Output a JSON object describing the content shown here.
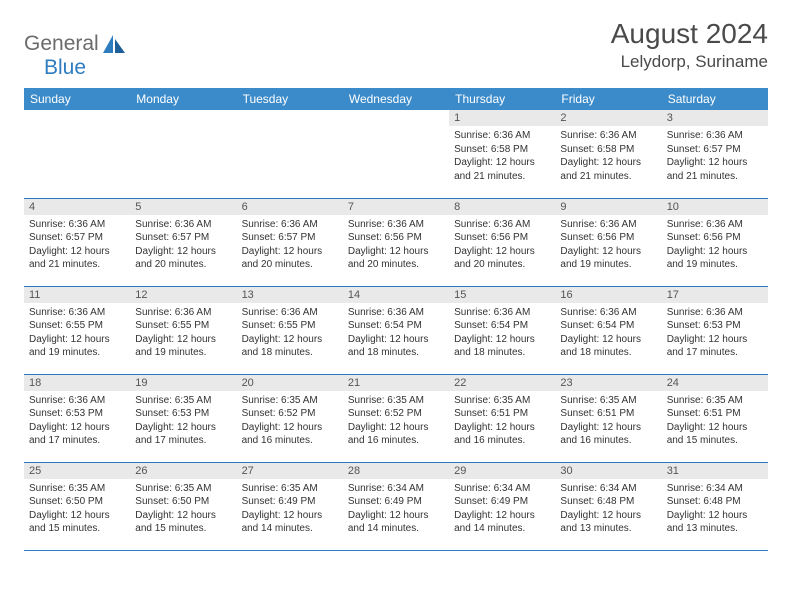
{
  "brand": {
    "part1": "General",
    "part2": "Blue"
  },
  "title": "August 2024",
  "location": "Lelydorp, Suriname",
  "colors": {
    "header_bg": "#3b8bca",
    "header_text": "#ffffff",
    "daynum_bg": "#e9e9e9",
    "rule": "#2e7cc0",
    "text": "#333333",
    "brand_gray": "#6b6b6b",
    "brand_blue": "#2e7cc0"
  },
  "weekdays": [
    "Sunday",
    "Monday",
    "Tuesday",
    "Wednesday",
    "Thursday",
    "Friday",
    "Saturday"
  ],
  "weeks": [
    [
      null,
      null,
      null,
      null,
      {
        "n": "1",
        "sr": "6:36 AM",
        "ss": "6:58 PM",
        "dl": "12 hours and 21 minutes."
      },
      {
        "n": "2",
        "sr": "6:36 AM",
        "ss": "6:58 PM",
        "dl": "12 hours and 21 minutes."
      },
      {
        "n": "3",
        "sr": "6:36 AM",
        "ss": "6:57 PM",
        "dl": "12 hours and 21 minutes."
      }
    ],
    [
      {
        "n": "4",
        "sr": "6:36 AM",
        "ss": "6:57 PM",
        "dl": "12 hours and 21 minutes."
      },
      {
        "n": "5",
        "sr": "6:36 AM",
        "ss": "6:57 PM",
        "dl": "12 hours and 20 minutes."
      },
      {
        "n": "6",
        "sr": "6:36 AM",
        "ss": "6:57 PM",
        "dl": "12 hours and 20 minutes."
      },
      {
        "n": "7",
        "sr": "6:36 AM",
        "ss": "6:56 PM",
        "dl": "12 hours and 20 minutes."
      },
      {
        "n": "8",
        "sr": "6:36 AM",
        "ss": "6:56 PM",
        "dl": "12 hours and 20 minutes."
      },
      {
        "n": "9",
        "sr": "6:36 AM",
        "ss": "6:56 PM",
        "dl": "12 hours and 19 minutes."
      },
      {
        "n": "10",
        "sr": "6:36 AM",
        "ss": "6:56 PM",
        "dl": "12 hours and 19 minutes."
      }
    ],
    [
      {
        "n": "11",
        "sr": "6:36 AM",
        "ss": "6:55 PM",
        "dl": "12 hours and 19 minutes."
      },
      {
        "n": "12",
        "sr": "6:36 AM",
        "ss": "6:55 PM",
        "dl": "12 hours and 19 minutes."
      },
      {
        "n": "13",
        "sr": "6:36 AM",
        "ss": "6:55 PM",
        "dl": "12 hours and 18 minutes."
      },
      {
        "n": "14",
        "sr": "6:36 AM",
        "ss": "6:54 PM",
        "dl": "12 hours and 18 minutes."
      },
      {
        "n": "15",
        "sr": "6:36 AM",
        "ss": "6:54 PM",
        "dl": "12 hours and 18 minutes."
      },
      {
        "n": "16",
        "sr": "6:36 AM",
        "ss": "6:54 PM",
        "dl": "12 hours and 18 minutes."
      },
      {
        "n": "17",
        "sr": "6:36 AM",
        "ss": "6:53 PM",
        "dl": "12 hours and 17 minutes."
      }
    ],
    [
      {
        "n": "18",
        "sr": "6:36 AM",
        "ss": "6:53 PM",
        "dl": "12 hours and 17 minutes."
      },
      {
        "n": "19",
        "sr": "6:35 AM",
        "ss": "6:53 PM",
        "dl": "12 hours and 17 minutes."
      },
      {
        "n": "20",
        "sr": "6:35 AM",
        "ss": "6:52 PM",
        "dl": "12 hours and 16 minutes."
      },
      {
        "n": "21",
        "sr": "6:35 AM",
        "ss": "6:52 PM",
        "dl": "12 hours and 16 minutes."
      },
      {
        "n": "22",
        "sr": "6:35 AM",
        "ss": "6:51 PM",
        "dl": "12 hours and 16 minutes."
      },
      {
        "n": "23",
        "sr": "6:35 AM",
        "ss": "6:51 PM",
        "dl": "12 hours and 16 minutes."
      },
      {
        "n": "24",
        "sr": "6:35 AM",
        "ss": "6:51 PM",
        "dl": "12 hours and 15 minutes."
      }
    ],
    [
      {
        "n": "25",
        "sr": "6:35 AM",
        "ss": "6:50 PM",
        "dl": "12 hours and 15 minutes."
      },
      {
        "n": "26",
        "sr": "6:35 AM",
        "ss": "6:50 PM",
        "dl": "12 hours and 15 minutes."
      },
      {
        "n": "27",
        "sr": "6:35 AM",
        "ss": "6:49 PM",
        "dl": "12 hours and 14 minutes."
      },
      {
        "n": "28",
        "sr": "6:34 AM",
        "ss": "6:49 PM",
        "dl": "12 hours and 14 minutes."
      },
      {
        "n": "29",
        "sr": "6:34 AM",
        "ss": "6:49 PM",
        "dl": "12 hours and 14 minutes."
      },
      {
        "n": "30",
        "sr": "6:34 AM",
        "ss": "6:48 PM",
        "dl": "12 hours and 13 minutes."
      },
      {
        "n": "31",
        "sr": "6:34 AM",
        "ss": "6:48 PM",
        "dl": "12 hours and 13 minutes."
      }
    ]
  ],
  "labels": {
    "sunrise": "Sunrise:",
    "sunset": "Sunset:",
    "daylight": "Daylight:"
  }
}
